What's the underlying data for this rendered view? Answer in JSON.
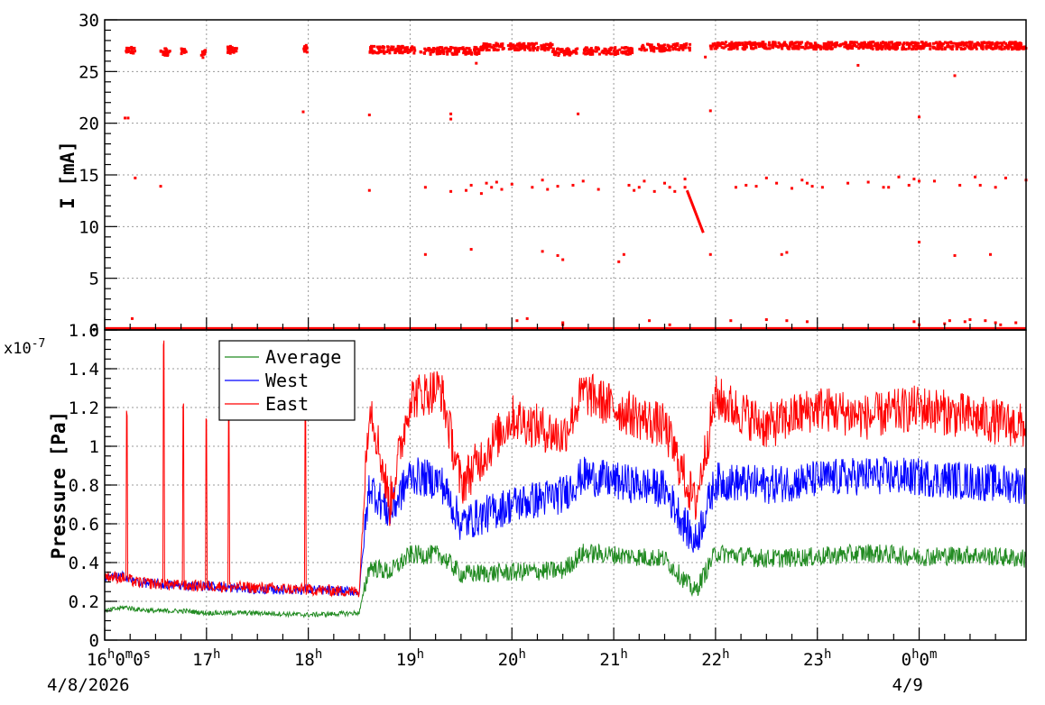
{
  "chart_data": [
    {
      "type": "scatter",
      "ylabel": "I [mA]",
      "ylim": [
        0,
        30
      ],
      "yticks": [
        0,
        5,
        10,
        15,
        20,
        25,
        30
      ],
      "x_unit": "hours since 4/8/2026 16:00",
      "xlim": [
        0,
        9.05
      ],
      "grid": true,
      "series": [
        {
          "color": "#ff0000",
          "description": "beam current samples",
          "main_band": [
            {
              "x_start": 0.2,
              "x_end": 0.3,
              "y": 27.0
            },
            {
              "x_start": 0.55,
              "x_end": 0.65,
              "y": 26.9
            },
            {
              "x_start": 0.75,
              "x_end": 0.8,
              "y": 26.9
            },
            {
              "x_start": 0.95,
              "x_end": 1.0,
              "y": 26.7
            },
            {
              "x_start": 1.2,
              "x_end": 1.3,
              "y": 27.1
            },
            {
              "x_start": 1.95,
              "x_end": 2.0,
              "y": 27.2
            },
            {
              "x_start": 2.6,
              "x_end": 3.05,
              "y": 27.1
            },
            {
              "x_start": 3.1,
              "x_end": 3.7,
              "y": 27.0
            },
            {
              "x_start": 3.7,
              "x_end": 4.4,
              "y": 27.4
            },
            {
              "x_start": 4.4,
              "x_end": 4.65,
              "y": 26.9
            },
            {
              "x_start": 4.7,
              "x_end": 5.2,
              "y": 27.0
            },
            {
              "x_start": 5.25,
              "x_end": 5.55,
              "y": 27.3
            },
            {
              "x_start": 5.55,
              "x_end": 5.75,
              "y": 27.4
            },
            {
              "x_start": 5.95,
              "x_end": 9.05,
              "y": 27.5
            }
          ],
          "zero_line": {
            "x_start": 0,
            "x_end": 9.05,
            "y": 0.1
          },
          "points": [
            [
              0.2,
              20.5
            ],
            [
              0.23,
              20.5
            ],
            [
              0.3,
              14.7
            ],
            [
              0.27,
              1.1
            ],
            [
              0.55,
              13.9
            ],
            [
              1.95,
              21.1
            ],
            [
              2.6,
              20.8
            ],
            [
              2.6,
              13.5
            ],
            [
              3.15,
              7.3
            ],
            [
              3.15,
              13.8
            ],
            [
              3.4,
              20.9
            ],
            [
              3.4,
              20.4
            ],
            [
              3.4,
              13.4
            ],
            [
              3.6,
              7.8
            ],
            [
              3.65,
              25.8
            ],
            [
              3.55,
              13.5
            ],
            [
              3.6,
              14.0
            ],
            [
              3.7,
              13.2
            ],
            [
              3.75,
              14.2
            ],
            [
              3.8,
              13.8
            ],
            [
              3.85,
              14.3
            ],
            [
              3.9,
              13.6
            ],
            [
              4.0,
              14.1
            ],
            [
              4.15,
              1.1
            ],
            [
              4.2,
              13.8
            ],
            [
              4.3,
              14.5
            ],
            [
              4.3,
              7.6
            ],
            [
              4.35,
              13.6
            ],
            [
              4.45,
              13.9
            ],
            [
              4.45,
              7.2
            ],
            [
              4.5,
              6.8
            ],
            [
              4.5,
              0.7
            ],
            [
              4.65,
              20.9
            ],
            [
              4.6,
              14.0
            ],
            [
              4.7,
              14.4
            ],
            [
              4.85,
              13.6
            ],
            [
              5.05,
              6.6
            ],
            [
              5.1,
              7.3
            ],
            [
              5.15,
              14.0
            ],
            [
              5.2,
              13.5
            ],
            [
              5.25,
              13.8
            ],
            [
              5.3,
              14.4
            ],
            [
              5.4,
              13.4
            ],
            [
              5.5,
              14.2
            ],
            [
              5.55,
              13.8
            ],
            [
              5.6,
              13.4
            ],
            [
              5.7,
              14.6
            ],
            [
              5.7,
              13.8
            ],
            [
              5.95,
              21.2
            ],
            [
              5.95,
              7.3
            ],
            [
              5.9,
              26.4
            ],
            [
              6.2,
              13.8
            ],
            [
              6.3,
              14.0
            ],
            [
              6.4,
              13.9
            ],
            [
              6.5,
              14.7
            ],
            [
              6.6,
              14.2
            ],
            [
              6.65,
              7.3
            ],
            [
              6.7,
              7.5
            ],
            [
              6.75,
              13.7
            ],
            [
              6.85,
              14.5
            ],
            [
              6.9,
              14.2
            ],
            [
              6.95,
              13.9
            ],
            [
              7.05,
              13.8
            ],
            [
              7.3,
              14.2
            ],
            [
              7.4,
              25.6
            ],
            [
              7.5,
              14.3
            ],
            [
              7.65,
              13.8
            ],
            [
              7.7,
              13.8
            ],
            [
              7.8,
              14.8
            ],
            [
              7.9,
              14.0
            ],
            [
              7.95,
              14.6
            ],
            [
              8.0,
              14.4
            ],
            [
              8.0,
              20.6
            ],
            [
              8.0,
              8.5
            ],
            [
              8.15,
              14.4
            ],
            [
              8.35,
              24.6
            ],
            [
              8.35,
              7.2
            ],
            [
              8.4,
              14.0
            ],
            [
              8.55,
              14.8
            ],
            [
              8.6,
              14.0
            ],
            [
              8.75,
              13.8
            ],
            [
              8.7,
              7.3
            ],
            [
              8.85,
              14.7
            ],
            [
              9.05,
              14.5
            ],
            [
              4.05,
              0.9
            ],
            [
              4.5,
              0.5
            ],
            [
              5.35,
              0.9
            ],
            [
              5.55,
              0.5
            ],
            [
              6.15,
              0.9
            ],
            [
              6.5,
              1.0
            ],
            [
              6.7,
              0.9
            ],
            [
              6.9,
              0.8
            ],
            [
              7.95,
              0.8
            ],
            [
              8.0,
              0.5
            ],
            [
              8.25,
              0.6
            ],
            [
              8.3,
              0.9
            ],
            [
              8.45,
              0.8
            ],
            [
              8.5,
              1.0
            ],
            [
              8.65,
              0.9
            ],
            [
              8.75,
              0.7
            ],
            [
              8.8,
              0.5
            ],
            [
              8.95,
              0.7
            ]
          ],
          "decay_segment": {
            "x_start": 5.72,
            "x_end": 5.88,
            "y_start": 13.5,
            "y_end": 9.4
          }
        }
      ]
    },
    {
      "type": "line",
      "ylabel": "Pressure [Pa]",
      "y_multiplier": "x10",
      "y_exponent": "-7",
      "ylim": [
        0,
        1.6
      ],
      "yticks": [
        0,
        0.2,
        0.4,
        0.6,
        0.8,
        1,
        1.2,
        1.4,
        1.6
      ],
      "x_unit": "hours since 4/8/2026 16:00",
      "xlim": [
        0,
        9.05
      ],
      "xticks": [
        {
          "x": 0,
          "label": "16",
          "suffix": "0",
          "suffix2": "0",
          "suffix3": "0",
          "full": "16h0m0s"
        },
        {
          "x": 1,
          "label": "17",
          "suffix": ""
        },
        {
          "x": 2,
          "label": "18",
          "suffix": ""
        },
        {
          "x": 3,
          "label": "19",
          "suffix": ""
        },
        {
          "x": 4,
          "label": "20",
          "suffix": ""
        },
        {
          "x": 5,
          "label": "21",
          "suffix": ""
        },
        {
          "x": 6,
          "label": "22",
          "suffix": ""
        },
        {
          "x": 7,
          "label": "23",
          "suffix": ""
        },
        {
          "x": 8,
          "label": "0",
          "suffix": "0",
          "full": "0h0m"
        }
      ],
      "date_labels": [
        {
          "x": 0,
          "text": "4/8/2026"
        },
        {
          "x": 8,
          "text": "4/9"
        }
      ],
      "grid": true,
      "legend": {
        "placement": "top-left",
        "entries": [
          {
            "name": "Average",
            "color": "#228b22"
          },
          {
            "name": "West",
            "color": "#0000ff"
          },
          {
            "name": "East",
            "color": "#ff0000"
          }
        ]
      },
      "series": [
        {
          "name": "Average",
          "color": "#228b22",
          "x": [
            0,
            0.2,
            0.3,
            0.5,
            0.8,
            1.0,
            1.5,
            2.0,
            2.5,
            2.6,
            2.8,
            3.0,
            3.3,
            3.5,
            4.0,
            4.5,
            4.7,
            5.0,
            5.5,
            5.8,
            6.0,
            6.5,
            7.0,
            7.5,
            8.0,
            8.5,
            9.05
          ],
          "y": [
            0.15,
            0.17,
            0.16,
            0.15,
            0.15,
            0.14,
            0.14,
            0.13,
            0.14,
            0.38,
            0.35,
            0.44,
            0.44,
            0.34,
            0.35,
            0.36,
            0.45,
            0.44,
            0.42,
            0.25,
            0.45,
            0.42,
            0.43,
            0.45,
            0.43,
            0.44,
            0.42
          ],
          "noise": 0.05
        },
        {
          "name": "West",
          "color": "#0000ff",
          "x": [
            0,
            0.2,
            0.3,
            0.5,
            0.8,
            1.0,
            1.5,
            2.0,
            2.5,
            2.6,
            2.8,
            3.0,
            3.3,
            3.5,
            4.0,
            4.5,
            4.7,
            5.0,
            5.5,
            5.8,
            6.0,
            6.5,
            7.0,
            7.5,
            8.0,
            8.5,
            9.05
          ],
          "y": [
            0.32,
            0.33,
            0.3,
            0.29,
            0.28,
            0.28,
            0.26,
            0.26,
            0.25,
            0.8,
            0.65,
            0.85,
            0.82,
            0.6,
            0.7,
            0.75,
            0.85,
            0.82,
            0.78,
            0.5,
            0.82,
            0.8,
            0.83,
            0.85,
            0.84,
            0.82,
            0.8
          ],
          "noise": 0.1
        },
        {
          "name": "East",
          "color": "#ff0000",
          "x": [
            0,
            0.2,
            0.3,
            0.5,
            0.8,
            1.0,
            1.5,
            2.0,
            2.5,
            2.6,
            2.8,
            3.0,
            3.3,
            3.5,
            4.0,
            4.5,
            4.7,
            5.0,
            5.5,
            5.8,
            6.0,
            6.5,
            7.0,
            7.5,
            8.0,
            8.5,
            9.05
          ],
          "y": [
            0.33,
            0.32,
            0.3,
            0.29,
            0.28,
            0.28,
            0.27,
            0.26,
            0.25,
            1.25,
            0.7,
            1.25,
            1.3,
            0.8,
            1.15,
            1.05,
            1.28,
            1.2,
            1.1,
            0.7,
            1.25,
            1.1,
            1.2,
            1.15,
            1.2,
            1.15,
            1.1
          ],
          "noise": 0.12,
          "spikes": [
            {
              "x": 0.22,
              "y": 1.25
            },
            {
              "x": 0.58,
              "y": 1.55
            },
            {
              "x": 0.77,
              "y": 1.25
            },
            {
              "x": 1.0,
              "y": 1.22
            },
            {
              "x": 1.22,
              "y": 1.22
            },
            {
              "x": 1.97,
              "y": 1.32
            }
          ]
        }
      ]
    }
  ]
}
